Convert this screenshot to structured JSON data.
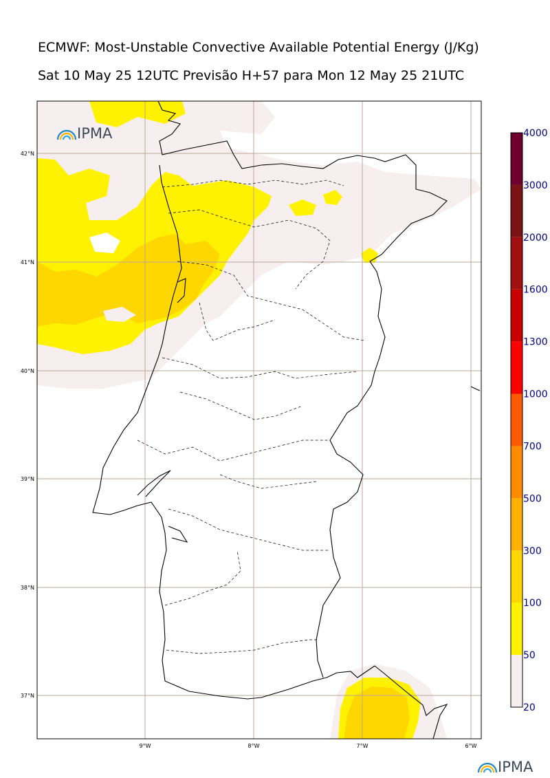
{
  "title_line1": "ECMWF: Most-Unstable Convective Available Potential Energy (J/Kg)",
  "title_line2": "Sat 10 May 25 12UTC Previsão H+57 para Mon 12 May 25 21UTC",
  "logo_text": "IPMA",
  "footer_logo_text": "IPMA",
  "lon_labels": [
    "9°W",
    "8°W",
    "7°W",
    "6°W"
  ],
  "lat_labels": [
    "42°N",
    "41°N",
    "40°N",
    "39°N",
    "38°N",
    "37°N"
  ],
  "colorbar": {
    "labels": [
      "20",
      "50",
      "100",
      "300",
      "500",
      "700",
      "1000",
      "1300",
      "1600",
      "2000",
      "3000",
      "4000"
    ],
    "colors": [
      "#f7eef0",
      "#fff200",
      "#ffd700",
      "#ffb000",
      "#ff8c00",
      "#ff5a00",
      "#ff0000",
      "#c80000",
      "#a01010",
      "#7a1414",
      "#6e0030",
      "#5a1000"
    ]
  },
  "palette": {
    "cape_low": "#f7eef0",
    "cape_50": "#fff200",
    "cape_100": "#ffd700",
    "grid": "#b8a896",
    "coast": "#000000"
  }
}
